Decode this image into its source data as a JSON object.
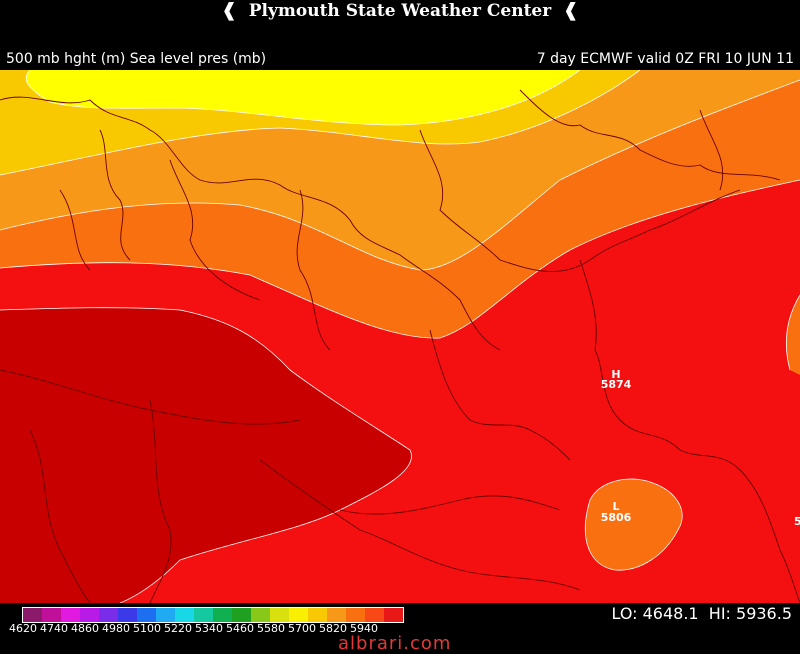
{
  "header": {
    "title": "Plymouth State Weather Center",
    "left_label": "500 mb hght (m) Sea level pres (mb)",
    "right_label": "7 day ECMWF valid 0Z FRI 10 JUN 11"
  },
  "map": {
    "highs": [
      {
        "label": "H",
        "value": "5874"
      }
    ],
    "lows": [
      {
        "label": "L",
        "value": "5806"
      }
    ],
    "edge_label": "5"
  },
  "colorbar": {
    "ticks": [
      "4620",
      "4740",
      "4860",
      "4980",
      "5100",
      "5220",
      "5340",
      "5460",
      "5580",
      "5700",
      "5820",
      "5940"
    ],
    "colors": [
      "#8b1a6b",
      "#c0109a",
      "#e21ae0",
      "#b81ae8",
      "#7a2de8",
      "#3a3ae8",
      "#1e6ef0",
      "#20aaf2",
      "#18d8e8",
      "#14c8a0",
      "#10b050",
      "#20a020",
      "#88c818",
      "#d8e010",
      "#f8f000",
      "#f8c800",
      "#f89818",
      "#f87010",
      "#f84818",
      "#e81818"
    ]
  },
  "stats": {
    "lo_label": "LO:",
    "lo_value": "4648.1",
    "hi_label": "HI:",
    "hi_value": "5936.5"
  },
  "watermark": "albrari.com",
  "colors": {
    "band_yellow": "#ffff00",
    "band_gold": "#f8c800",
    "band_orange_light": "#f89818",
    "band_orange": "#f87010",
    "band_red": "#f41010",
    "band_dark_red": "#c80000",
    "border_lines": "#6a0000"
  }
}
